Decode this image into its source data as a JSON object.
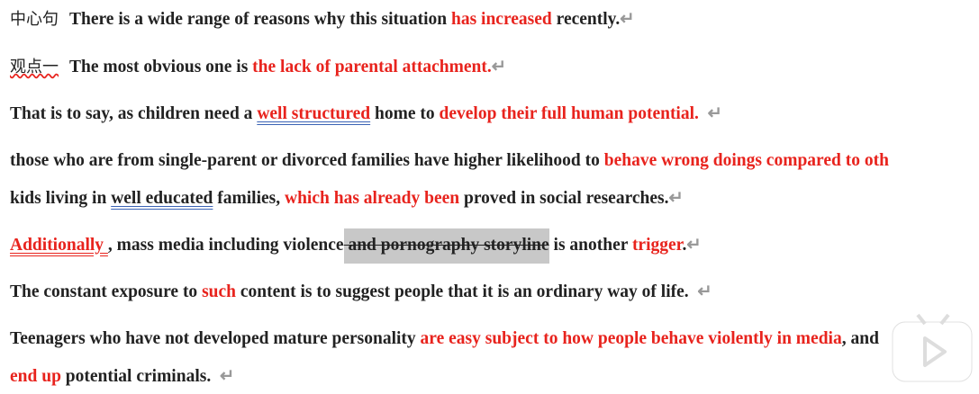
{
  "document": {
    "lines": [
      {
        "label": "中心句",
        "segments": [
          {
            "text": "There is a wide range of reasons why this situation "
          },
          {
            "text": "has increased",
            "color": "#e8231d"
          },
          {
            "text": " recently."
          },
          {
            "text": "↵",
            "color": "#999999"
          }
        ]
      },
      {
        "label": "观点一",
        "segments": [
          {
            "text": "The most obvious one is "
          },
          {
            "text": "the lack of parental attachment.",
            "color": "#e8231d"
          },
          {
            "text": "↵",
            "color": "#999999"
          }
        ]
      },
      {
        "segments": [
          {
            "text": "That is to say, as children need a "
          },
          {
            "text": "well structured",
            "color": "#e8231d",
            "underline": "#3b63b5"
          },
          {
            "text": " home to "
          },
          {
            "text": "develop their full human potential.",
            "color": "#e8231d"
          },
          {
            "text": "  ↵",
            "color": "#999999"
          }
        ]
      },
      {
        "segments": [
          {
            "text": "those who are from single-parent or divorced families have higher likelihood to "
          },
          {
            "text": "behave wrong doings compared to oth",
            "color": "#e8231d"
          }
        ]
      },
      {
        "segments": [
          {
            "text": "kids living in "
          },
          {
            "text": "well educated",
            "underline": "#3b63b5"
          },
          {
            "text": " families, "
          },
          {
            "text": "which has already been",
            "color": "#e8231d"
          },
          {
            "text": " proved in social researches."
          },
          {
            "text": "↵",
            "color": "#999999"
          }
        ]
      },
      {
        "segments": [
          {
            "text": "Additionally ",
            "color": "#e8231d",
            "underline": "#e8231d"
          },
          {
            "text": ", mass media including violence"
          },
          {
            "text": " and pornography storyline",
            "strike": true,
            "highlight": "#c8c8c8"
          },
          {
            "text": " is another "
          },
          {
            "text": "trigger",
            "color": "#e8231d"
          },
          {
            "text": "."
          },
          {
            "text": "↵",
            "color": "#999999"
          }
        ]
      },
      {
        "segments": [
          {
            "text": "The constant exposure to "
          },
          {
            "text": "such",
            "color": "#e8231d"
          },
          {
            "text": " content is to suggest people that it is an ordinary way of life."
          },
          {
            "text": "  ↵",
            "color": "#999999"
          }
        ]
      },
      {
        "segments": [
          {
            "text": "Teenagers who have not developed mature personality "
          },
          {
            "text": "are easy subject to how people behave violently in media",
            "color": "#e8231d"
          },
          {
            "text": ", and"
          }
        ]
      },
      {
        "segments": [
          {
            "text": "end up",
            "color": "#e8231d"
          },
          {
            "text": " potential criminals."
          },
          {
            "text": "  ↵",
            "color": "#999999"
          }
        ]
      }
    ]
  }
}
